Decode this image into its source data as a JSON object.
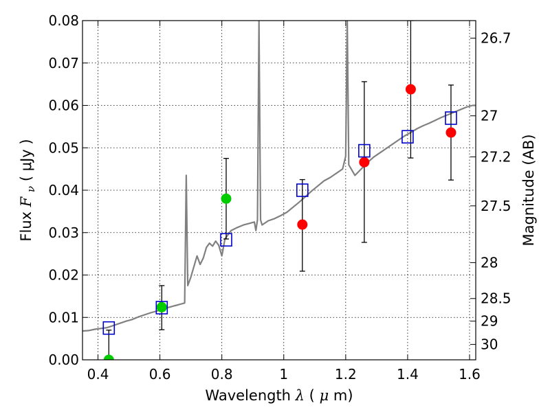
{
  "chart_data": {
    "type": "scatter",
    "xlabel": "Wavelength  λ (μm)",
    "xlabel_prefix": "Wavelength ",
    "xlabel_lambda": "λ",
    "xlabel_unit_open": " (",
    "xlabel_mu": "μ",
    "xlabel_unit_close": "m)",
    "ylabel": "Flux  Fν  ( μJy )",
    "ylabel_prefix": "Flux ",
    "ylabel_F": "F",
    "ylabel_nu": "ν",
    "ylabel_unit": "  ( μJy )",
    "y2label": "Magnitude (AB)",
    "xlim": [
      0.35,
      1.62
    ],
    "ylim": [
      0.0,
      0.08
    ],
    "grid": true,
    "x_ticks": [
      {
        "value": 0.4,
        "label": "0.4"
      },
      {
        "value": 0.6,
        "label": "0.6"
      },
      {
        "value": 0.8,
        "label": "0.8"
      },
      {
        "value": 1.0,
        "label": "1"
      },
      {
        "value": 1.2,
        "label": "1.2"
      },
      {
        "value": 1.4,
        "label": "1.4"
      },
      {
        "value": 1.6,
        "label": "1.6"
      }
    ],
    "y_ticks": [
      {
        "value": 0.0,
        "label": "0.00"
      },
      {
        "value": 0.01,
        "label": "0.01"
      },
      {
        "value": 0.02,
        "label": "0.02"
      },
      {
        "value": 0.03,
        "label": "0.03"
      },
      {
        "value": 0.04,
        "label": "0.04"
      },
      {
        "value": 0.05,
        "label": "0.05"
      },
      {
        "value": 0.06,
        "label": "0.06"
      },
      {
        "value": 0.07,
        "label": "0.07"
      },
      {
        "value": 0.08,
        "label": "0.08"
      }
    ],
    "mag_ticks": [
      {
        "value": 26.7,
        "label": "26.7"
      },
      {
        "value": 27.0,
        "label": "27"
      },
      {
        "value": 27.2,
        "label": "27.2"
      },
      {
        "value": 27.5,
        "label": "27.5"
      },
      {
        "value": 28.0,
        "label": "28"
      },
      {
        "value": 28.5,
        "label": "28.5"
      },
      {
        "value": 29.0,
        "label": "29"
      },
      {
        "value": 30.0,
        "label": "30"
      }
    ],
    "series": [
      {
        "name": "model-spectrum",
        "kind": "line",
        "color": "#808080",
        "points": [
          [
            0.35,
            0.0068
          ],
          [
            0.37,
            0.0069
          ],
          [
            0.39,
            0.0072
          ],
          [
            0.41,
            0.0074
          ],
          [
            0.43,
            0.0076
          ],
          [
            0.45,
            0.0081
          ],
          [
            0.47,
            0.0086
          ],
          [
            0.49,
            0.0091
          ],
          [
            0.51,
            0.0095
          ],
          [
            0.53,
            0.0101
          ],
          [
            0.55,
            0.0106
          ],
          [
            0.57,
            0.0111
          ],
          [
            0.59,
            0.0115
          ],
          [
            0.61,
            0.0121
          ],
          [
            0.63,
            0.0124
          ],
          [
            0.65,
            0.0128
          ],
          [
            0.67,
            0.0132
          ],
          [
            0.68,
            0.0134
          ],
          [
            0.685,
            0.0435
          ],
          [
            0.69,
            0.0175
          ],
          [
            0.7,
            0.0195
          ],
          [
            0.71,
            0.022
          ],
          [
            0.72,
            0.0245
          ],
          [
            0.73,
            0.0225
          ],
          [
            0.74,
            0.024
          ],
          [
            0.75,
            0.0265
          ],
          [
            0.76,
            0.0275
          ],
          [
            0.77,
            0.0268
          ],
          [
            0.78,
            0.028
          ],
          [
            0.79,
            0.027
          ],
          [
            0.8,
            0.0245
          ],
          [
            0.81,
            0.0285
          ],
          [
            0.83,
            0.0305
          ],
          [
            0.85,
            0.0312
          ],
          [
            0.87,
            0.0318
          ],
          [
            0.89,
            0.0322
          ],
          [
            0.905,
            0.0325
          ],
          [
            0.91,
            0.0305
          ],
          [
            0.915,
            0.033
          ],
          [
            0.92,
            0.08
          ],
          [
            0.925,
            0.033
          ],
          [
            0.93,
            0.0318
          ],
          [
            0.95,
            0.0328
          ],
          [
            0.97,
            0.0333
          ],
          [
            0.99,
            0.034
          ],
          [
            1.01,
            0.0348
          ],
          [
            1.03,
            0.036
          ],
          [
            1.05,
            0.0372
          ],
          [
            1.07,
            0.0385
          ],
          [
            1.09,
            0.0398
          ],
          [
            1.11,
            0.041
          ],
          [
            1.13,
            0.0422
          ],
          [
            1.15,
            0.043
          ],
          [
            1.17,
            0.044
          ],
          [
            1.19,
            0.045
          ],
          [
            1.2,
            0.048
          ],
          [
            1.205,
            0.08
          ],
          [
            1.21,
            0.046
          ],
          [
            1.23,
            0.0435
          ],
          [
            1.25,
            0.045
          ],
          [
            1.27,
            0.0465
          ],
          [
            1.29,
            0.0478
          ],
          [
            1.31,
            0.0488
          ],
          [
            1.33,
            0.0498
          ],
          [
            1.35,
            0.0508
          ],
          [
            1.37,
            0.0518
          ],
          [
            1.39,
            0.0528
          ],
          [
            1.41,
            0.0536
          ],
          [
            1.43,
            0.0545
          ],
          [
            1.45,
            0.0552
          ],
          [
            1.47,
            0.0558
          ],
          [
            1.49,
            0.0565
          ],
          [
            1.51,
            0.0572
          ],
          [
            1.53,
            0.0578
          ],
          [
            1.55,
            0.0584
          ],
          [
            1.57,
            0.059
          ],
          [
            1.59,
            0.0596
          ],
          [
            1.61,
            0.06
          ],
          [
            1.62,
            0.06
          ]
        ]
      },
      {
        "name": "model-photometry",
        "kind": "open-square",
        "color": "#0000cc",
        "points": [
          [
            0.435,
            0.0075
          ],
          [
            0.606,
            0.0123
          ],
          [
            0.814,
            0.0283
          ],
          [
            1.06,
            0.04
          ],
          [
            1.26,
            0.0493
          ],
          [
            1.4,
            0.0526
          ],
          [
            1.54,
            0.057
          ]
        ]
      },
      {
        "name": "observed-red",
        "kind": "filled-circle",
        "color": "#ff0000",
        "points": [
          {
            "x": 1.06,
            "y": 0.0319,
            "yerr_low": 0.0209,
            "yerr_high": 0.0425
          },
          {
            "x": 1.26,
            "y": 0.0466,
            "yerr_low": 0.0277,
            "yerr_high": 0.0656
          },
          {
            "x": 1.41,
            "y": 0.0638,
            "yerr_low": 0.0476,
            "yerr_high": 0.08
          },
          {
            "x": 1.54,
            "y": 0.0536,
            "yerr_low": 0.0424,
            "yerr_high": 0.0648
          }
        ]
      },
      {
        "name": "observed-green",
        "kind": "filled-circle",
        "color": "#00cc00",
        "points": [
          {
            "x": 0.435,
            "y": 0.0,
            "yerr_low": 0.0,
            "yerr_high": 0.007
          },
          {
            "x": 0.606,
            "y": 0.0124,
            "yerr_low": 0.0071,
            "yerr_high": 0.0175
          },
          {
            "x": 0.814,
            "y": 0.038,
            "yerr_low": 0.0285,
            "yerr_high": 0.0475
          }
        ]
      }
    ]
  }
}
